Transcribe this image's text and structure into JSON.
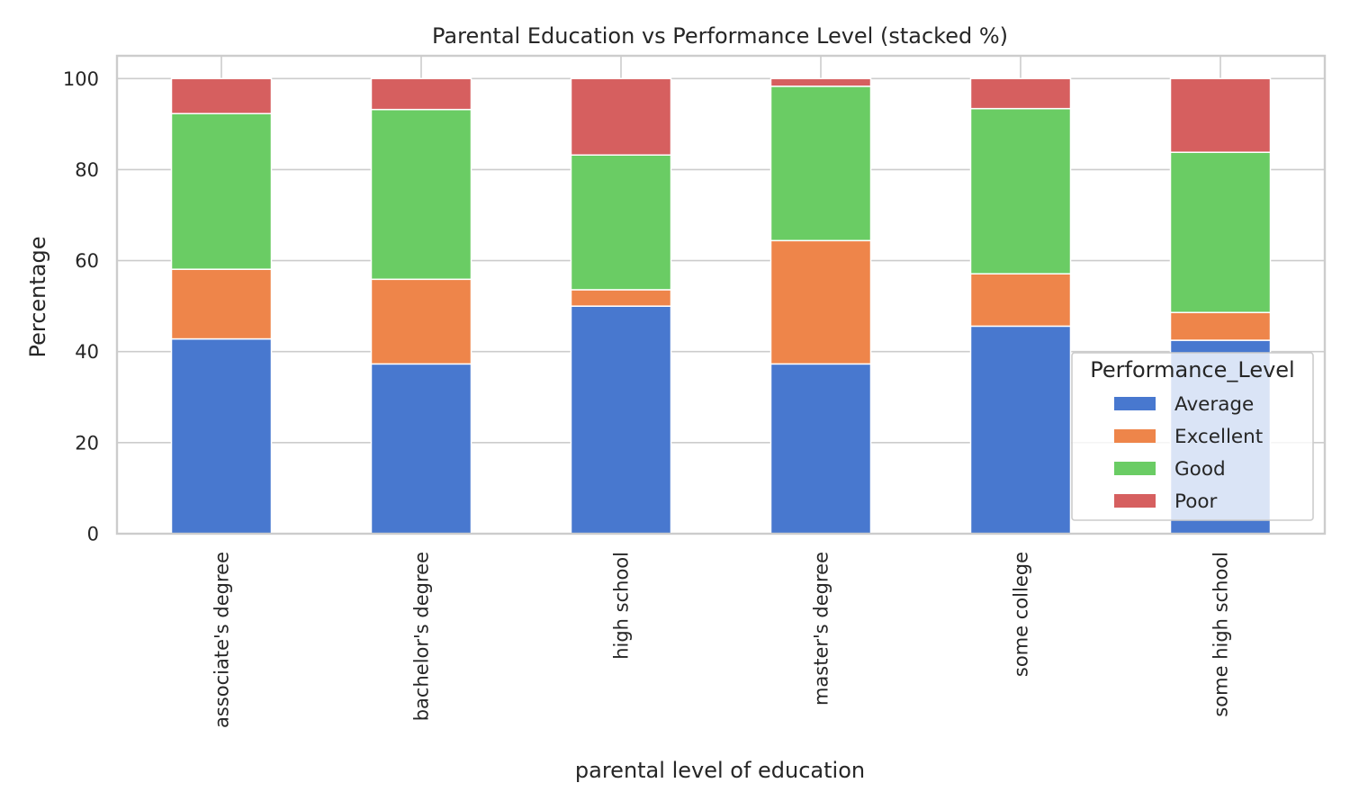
{
  "chart_data": {
    "type": "bar",
    "stacked": true,
    "title": "Parental Education vs Performance Level (stacked %)",
    "xlabel": "parental level of education",
    "ylabel": "Percentage",
    "ylim": [
      0,
      105
    ],
    "yticks": [
      0,
      20,
      40,
      60,
      80,
      100
    ],
    "grid": true,
    "legend_title": "Performance_Level",
    "legend_position": "lower-right",
    "categories": [
      "associate's degree",
      "bachelor's degree",
      "high school",
      "master's degree",
      "some college",
      "some high school"
    ],
    "series": [
      {
        "name": "Average",
        "color": "#4878cf",
        "values": [
          42.8,
          37.3,
          50.0,
          37.3,
          45.6,
          42.5
        ]
      },
      {
        "name": "Excellent",
        "color": "#ee854a",
        "values": [
          15.3,
          18.6,
          3.6,
          27.1,
          11.5,
          6.1
        ]
      },
      {
        "name": "Good",
        "color": "#6acc64",
        "values": [
          34.2,
          37.3,
          29.6,
          33.9,
          36.3,
          35.2
        ]
      },
      {
        "name": "Poor",
        "color": "#d65f5f",
        "values": [
          7.7,
          6.8,
          16.8,
          1.7,
          6.6,
          16.2
        ]
      }
    ]
  }
}
